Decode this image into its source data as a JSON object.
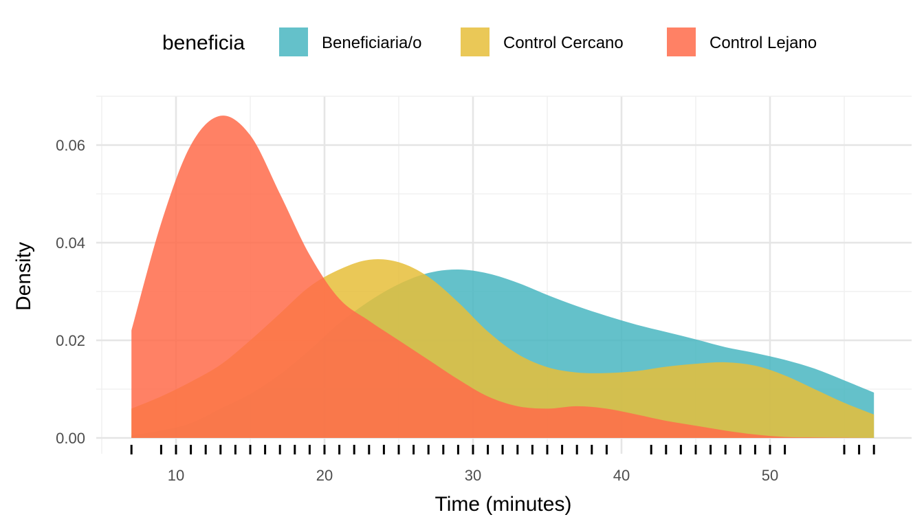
{
  "chart_data": {
    "type": "area",
    "subtype": "density",
    "xlabel": "Time (minutes)",
    "ylabel": "Density",
    "x_ticks": [
      10,
      20,
      30,
      40,
      50
    ],
    "y_ticks": [
      "0.00",
      "0.02",
      "0.04",
      "0.06"
    ],
    "y_tick_values": [
      0,
      0.02,
      0.04,
      0.06
    ],
    "xlim": [
      5,
      58
    ],
    "ylim": [
      0,
      0.07
    ],
    "grid": true,
    "legend": {
      "title": "beneficia",
      "position": "top"
    },
    "x": [
      7,
      9,
      11,
      13,
      15,
      17,
      19,
      21,
      23,
      25,
      27,
      29,
      31,
      33,
      35,
      37,
      39,
      41,
      43,
      45,
      47,
      49,
      51,
      53,
      55,
      57
    ],
    "series": [
      {
        "name": "Beneficiaria/o",
        "color": "#49B6C1",
        "values": [
          0.0005,
          0.0015,
          0.003,
          0.006,
          0.009,
          0.013,
          0.018,
          0.0235,
          0.028,
          0.0315,
          0.0338,
          0.0345,
          0.0337,
          0.0318,
          0.0293,
          0.027,
          0.025,
          0.0232,
          0.0217,
          0.0202,
          0.0186,
          0.0174,
          0.016,
          0.0142,
          0.0118,
          0.0093
        ]
      },
      {
        "name": "Control Cercano",
        "color": "#E6BE3A",
        "values": [
          0.006,
          0.0085,
          0.0115,
          0.015,
          0.02,
          0.0255,
          0.031,
          0.0345,
          0.0365,
          0.036,
          0.033,
          0.0278,
          0.0218,
          0.0172,
          0.0145,
          0.0134,
          0.0133,
          0.0137,
          0.0146,
          0.0152,
          0.0155,
          0.0148,
          0.0128,
          0.01,
          0.0072,
          0.0048
        ]
      },
      {
        "name": "Control Lejano",
        "color": "#FF6B4A",
        "values": [
          0.022,
          0.044,
          0.06,
          0.066,
          0.062,
          0.05,
          0.0375,
          0.0285,
          0.024,
          0.02,
          0.016,
          0.012,
          0.0085,
          0.0065,
          0.006,
          0.0065,
          0.006,
          0.0048,
          0.0035,
          0.0025,
          0.0015,
          0.0007,
          0.0002,
          0.0001,
          5e-05,
          0.0
        ]
      }
    ],
    "rug": [
      7,
      9,
      10,
      11,
      12,
      13,
      14,
      15,
      16,
      17,
      18,
      19,
      20,
      21,
      22,
      23,
      24,
      25,
      26,
      27,
      28,
      29,
      30,
      31,
      32,
      33,
      34,
      35,
      36,
      37,
      38,
      39,
      42,
      43,
      44,
      45,
      46,
      47,
      48,
      49,
      50,
      51,
      55,
      56,
      57
    ],
    "fill_opacity": 0.85
  }
}
